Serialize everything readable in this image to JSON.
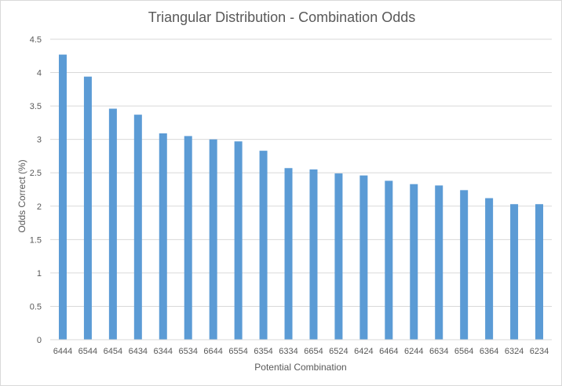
{
  "chart_data": {
    "type": "bar",
    "title": "Triangular Distribution - Combination Odds",
    "xlabel": "Potential Combination",
    "ylabel": "Odds Correct (%)",
    "categories": [
      "6444",
      "6544",
      "6454",
      "6434",
      "6344",
      "6534",
      "6644",
      "6554",
      "6354",
      "6334",
      "6654",
      "6524",
      "6424",
      "6464",
      "6244",
      "6634",
      "6564",
      "6364",
      "6324",
      "6234"
    ],
    "values": [
      4.27,
      3.94,
      3.46,
      3.37,
      3.09,
      3.05,
      3.0,
      2.97,
      2.83,
      2.57,
      2.55,
      2.49,
      2.46,
      2.38,
      2.33,
      2.31,
      2.24,
      2.12,
      2.03,
      2.03
    ],
    "ylim": [
      0,
      4.5
    ],
    "yticks": [
      0,
      0.5,
      1,
      1.5,
      2,
      2.5,
      3,
      3.5,
      4,
      4.5
    ],
    "ytick_labels": [
      "0",
      "0.5",
      "1",
      "1.5",
      "2",
      "2.5",
      "3",
      "3.5",
      "4",
      "4.5"
    ],
    "grid": true,
    "legend": "none",
    "bar_color": "#5b9bd5"
  }
}
